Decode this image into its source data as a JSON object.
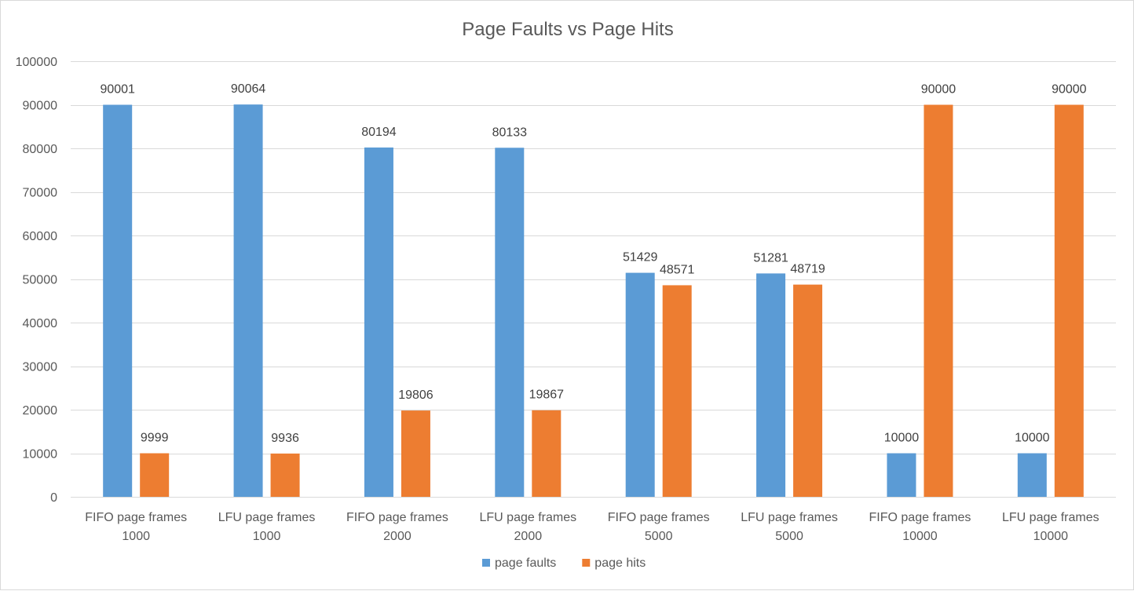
{
  "chart_data": {
    "type": "bar",
    "title": "Page Faults vs Page Hits",
    "categories": [
      [
        "FIFO page frames",
        "1000"
      ],
      [
        "LFU page frames",
        "1000"
      ],
      [
        "FIFO page frames",
        "2000"
      ],
      [
        "LFU page frames",
        "2000"
      ],
      [
        "FIFO page frames",
        "5000"
      ],
      [
        "LFU page frames",
        "5000"
      ],
      [
        "FIFO page frames",
        "10000"
      ],
      [
        "LFU page frames",
        "10000"
      ]
    ],
    "series": [
      {
        "name": "page faults",
        "color": "#5b9bd5",
        "values": [
          90001,
          90064,
          80194,
          80133,
          51429,
          51281,
          10000,
          10000
        ]
      },
      {
        "name": "page hits",
        "color": "#ed7d31",
        "values": [
          9999,
          9936,
          19806,
          19867,
          48571,
          48719,
          90000,
          90000
        ]
      }
    ],
    "ylim": [
      0,
      100000
    ],
    "yticks": [
      0,
      10000,
      20000,
      30000,
      40000,
      50000,
      60000,
      70000,
      80000,
      90000,
      100000
    ],
    "grid": true,
    "legend_position": "bottom",
    "data_labels": true
  }
}
